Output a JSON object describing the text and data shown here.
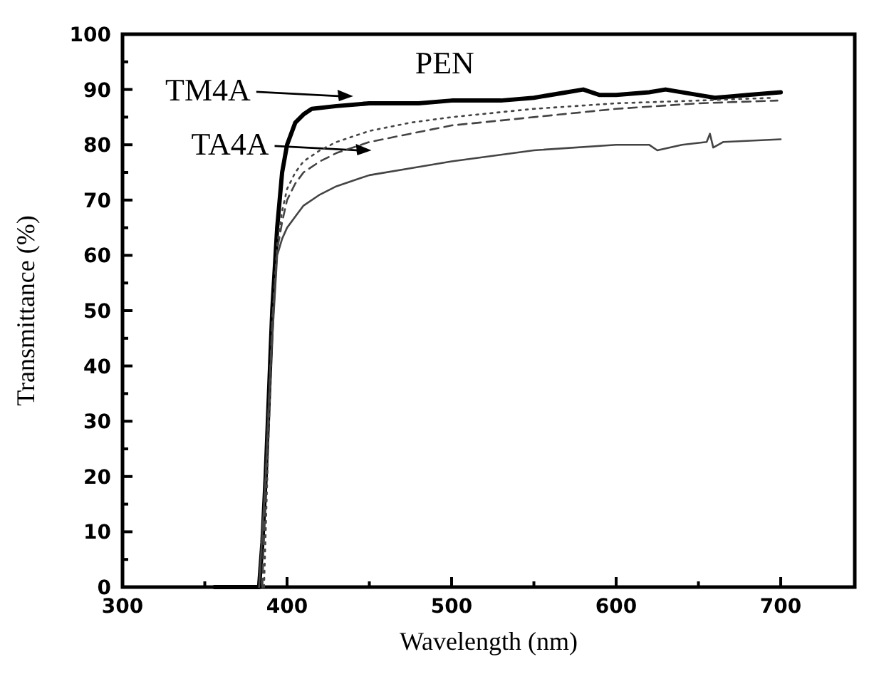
{
  "chart_data": {
    "type": "line",
    "xlabel": "Wavelength (nm)",
    "ylabel": "Transmittance (%)",
    "xlim": [
      300,
      745
    ],
    "ylim": [
      0,
      100
    ],
    "xticks": [
      300,
      {
        "value": 350,
        "label": null
      },
      400,
      {
        "value": 450,
        "label": null
      },
      500,
      {
        "value": 550,
        "label": null
      },
      600,
      {
        "value": 650,
        "label": null
      },
      700
    ],
    "yticks": [
      0,
      {
        "value": 5,
        "label": null
      },
      10,
      {
        "value": 15,
        "label": null
      },
      20,
      {
        "value": 25,
        "label": null
      },
      30,
      {
        "value": 35,
        "label": null
      },
      40,
      {
        "value": 45,
        "label": null
      },
      50,
      {
        "value": 55,
        "label": null
      },
      60,
      {
        "value": 65,
        "label": null
      },
      70,
      {
        "value": 75,
        "label": null
      },
      80,
      {
        "value": 85,
        "label": null
      },
      90,
      {
        "value": 95,
        "label": null
      },
      100
    ],
    "grid": false,
    "series": [
      {
        "color": "#000000",
        "line_style": "solid",
        "x": [
          356,
          383,
          385,
          387,
          389,
          391,
          394,
          397,
          400,
          405,
          410,
          415,
          430,
          450,
          480,
          500,
          530,
          550,
          570,
          580,
          590,
          600,
          620,
          630,
          650,
          660,
          680,
          700
        ],
        "values": [
          0,
          0,
          8,
          20,
          35,
          50,
          65,
          75,
          80,
          84,
          85.5,
          86.5,
          87,
          87.5,
          87.5,
          88,
          88,
          88.5,
          89.5,
          90,
          89,
          89,
          89.5,
          90,
          89,
          88.5,
          89,
          89.5
        ]
      },
      {
        "color": "#444444",
        "line_style": "dotted",
        "x": [
          386,
          388,
          391,
          394,
          397,
          400,
          405,
          410,
          420,
          430,
          450,
          475,
          500,
          550,
          600,
          650,
          696
        ],
        "values": [
          0,
          20,
          48,
          62,
          68,
          72,
          75,
          77,
          79,
          80.5,
          82.5,
          84,
          85,
          86.5,
          87.5,
          88,
          88.5
        ]
      },
      {
        "color": "#444444",
        "line_style": "dashed",
        "x": [
          385,
          387,
          391,
          394,
          397,
          400,
          405,
          410,
          420,
          430,
          450,
          475,
          500,
          550,
          600,
          650,
          698
        ],
        "values": [
          0,
          20,
          48,
          61,
          66,
          70,
          73,
          75,
          77,
          78.5,
          80.5,
          82,
          83.5,
          85,
          86.5,
          87.5,
          88
        ]
      },
      {
        "color": "#444444",
        "line_style": "solid",
        "x": [
          383,
          387,
          390,
          394,
          397,
          400,
          405,
          410,
          420,
          430,
          450,
          480,
          500,
          550,
          600,
          620,
          625,
          640,
          655,
          657,
          659,
          665,
          700
        ],
        "values": [
          0,
          20,
          40,
          60,
          63,
          65,
          67,
          69,
          71,
          72.5,
          74.5,
          76,
          77,
          79,
          80,
          80,
          79,
          80,
          80.5,
          82,
          79.5,
          80.5,
          81
        ]
      }
    ],
    "annotations": [
      "PEN",
      "TM4A",
      "TA4A"
    ]
  }
}
